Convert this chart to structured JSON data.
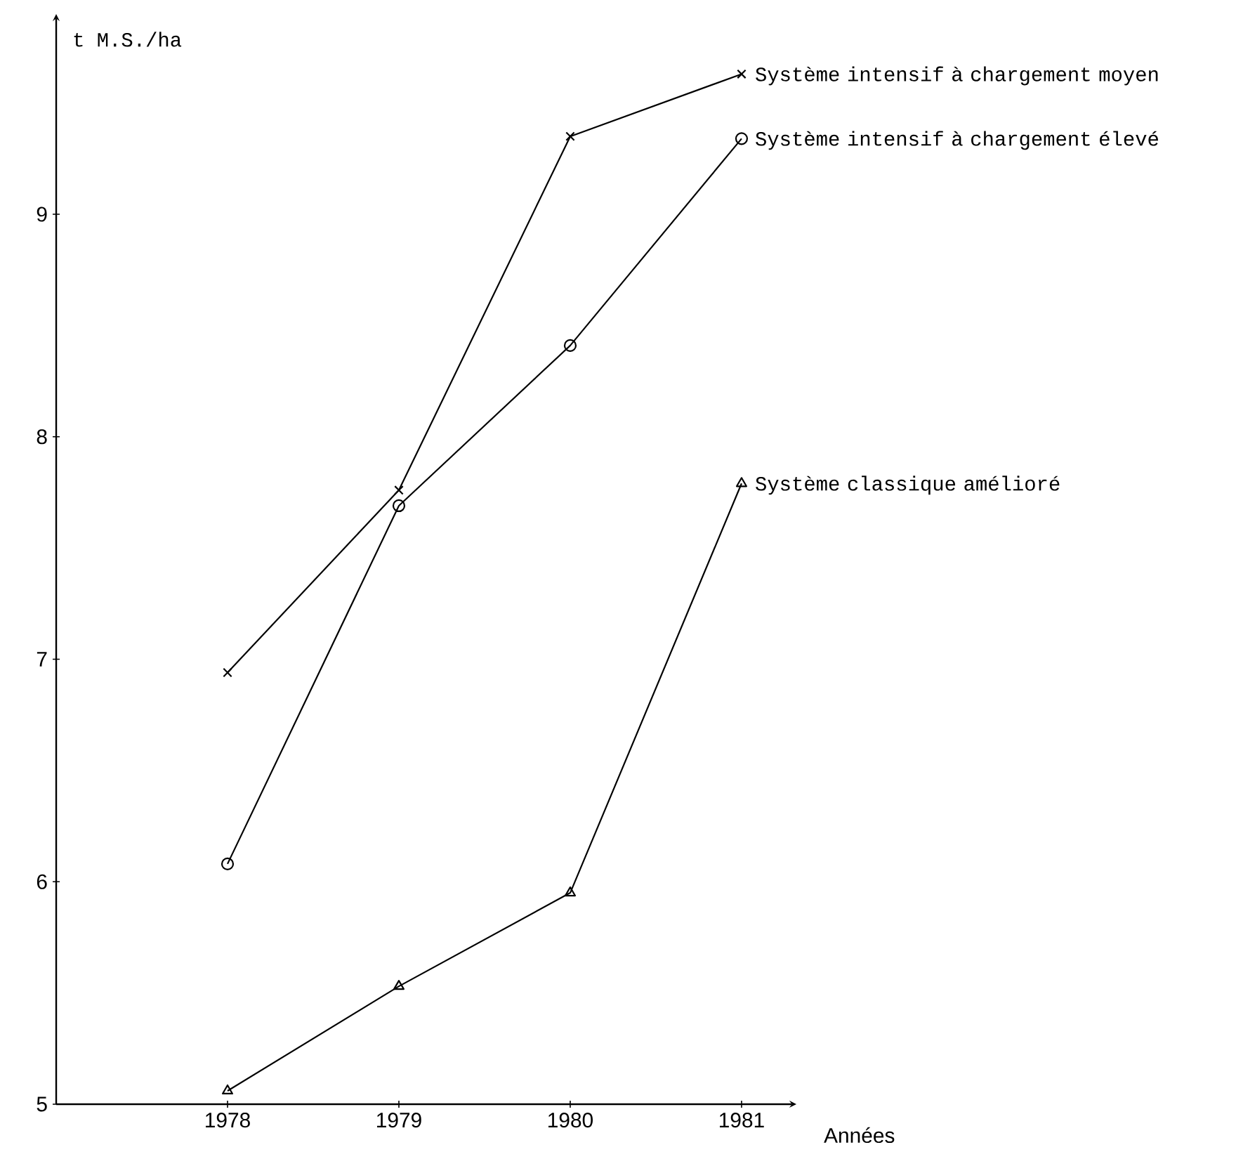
{
  "chart_data": {
    "type": "line",
    "xlabel": "Années",
    "ylabel": "t M.S./ha",
    "x": [
      1978,
      1979,
      1980,
      1981
    ],
    "series": [
      {
        "name": "Système intensif à chargement moyen",
        "color": "#000000",
        "marker": "cross",
        "values": [
          6.94,
          7.76,
          9.35,
          9.63
        ]
      },
      {
        "name": "Système intensif à chargement élevé",
        "color": "#000000",
        "marker": "circle",
        "values": [
          6.08,
          7.69,
          8.41,
          9.34
        ]
      },
      {
        "name": "Système classique amélioré",
        "color": "#000000",
        "marker": "triangle",
        "values": [
          5.06,
          5.53,
          5.95,
          7.79
        ]
      }
    ],
    "xlim": [
      1977,
      1981.32
    ],
    "ylim": [
      5,
      9.9
    ],
    "xticks": [
      1978,
      1979,
      1980,
      1981
    ],
    "yticks": [
      5,
      6,
      7,
      8,
      9
    ],
    "line_style": "solid",
    "grid": false,
    "legend": false
  }
}
